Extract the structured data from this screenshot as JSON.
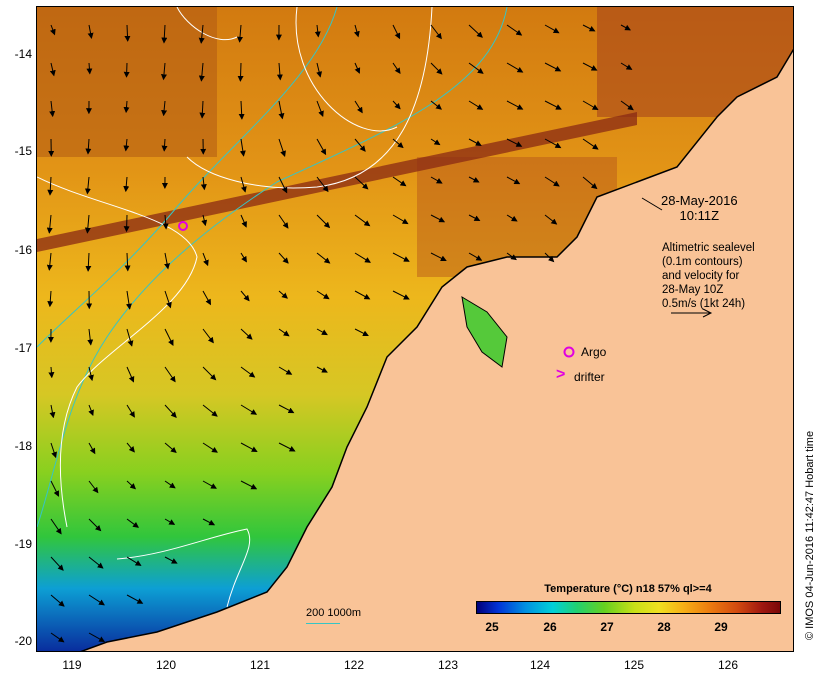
{
  "map": {
    "date_line1": "28-May-2016",
    "date_line2": "10:11Z",
    "altimetry_lines": [
      "Altimetric sealevel",
      "(0.1m contours)",
      "and velocity for",
      "28-May 10Z",
      "0.5m/s (1kt 24h)"
    ],
    "argo_label": "Argo",
    "drifter_label": "drifter",
    "drifter_symbol": ">",
    "credit": "© IMOS 04-Jun-2016 11:42:47 Hobart time",
    "depth_legend": "200  1000m",
    "y_ticks": [
      "-14",
      "-15",
      "-16",
      "-17",
      "-18",
      "-19",
      "-20"
    ],
    "x_ticks": [
      "119",
      "120",
      "121",
      "122",
      "123",
      "124",
      "125",
      "126"
    ],
    "colorbar": {
      "title": "Temperature (°C) n18 57% ql>=4",
      "ticks": [
        "25",
        "26",
        "27",
        "28",
        "29"
      ]
    },
    "colors": {
      "land": "#f9c397",
      "coast": "#000000",
      "argo": "#e000e0",
      "contour_depth": "#36c5c5",
      "contour_sealevel": "#ffffff"
    }
  }
}
